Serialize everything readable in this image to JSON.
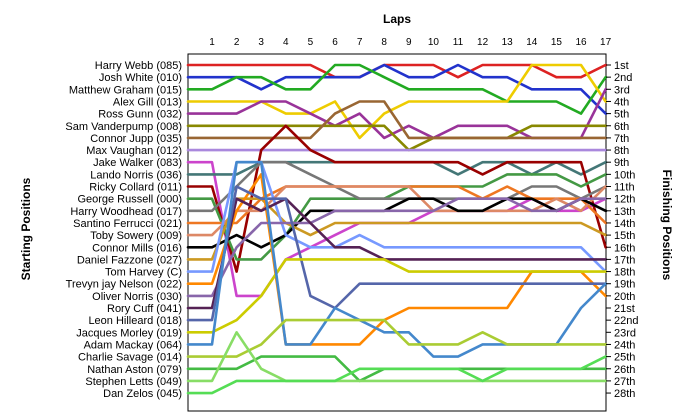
{
  "chart_data": {
    "type": "line",
    "title": "",
    "xlabel": "Laps",
    "ylabel_left": "Starting Positions",
    "ylabel_right": "Finishing Positions",
    "laps": [
      1,
      2,
      3,
      4,
      5,
      6,
      7,
      8,
      9,
      10,
      11,
      12,
      13,
      14,
      15,
      16,
      17
    ],
    "position_scale": [
      1,
      28
    ],
    "finish_labels": [
      "1st",
      "2nd",
      "3rd",
      "4th",
      "5th",
      "6th",
      "7th",
      "8th",
      "9th",
      "10th",
      "11th",
      "12th",
      "13th",
      "14th",
      "15th",
      "16th",
      "17th",
      "18th",
      "19th",
      "20th",
      "21st",
      "22nd",
      "23rd",
      "24th",
      "25th",
      "26th",
      "27th",
      "28th"
    ],
    "grid": false,
    "legend": "none",
    "series": [
      {
        "name": "Harry Webb (085)",
        "color": "#dd2222",
        "values": [
          1,
          1,
          1,
          1,
          1,
          2,
          2,
          1,
          1,
          1,
          2,
          1,
          1,
          1,
          2,
          2,
          1
        ]
      },
      {
        "name": "Josh White (010)",
        "color": "#2233cc",
        "values": [
          2,
          2,
          3,
          2,
          2,
          2,
          2,
          1,
          2,
          2,
          1,
          2,
          2,
          3,
          3,
          3,
          5
        ]
      },
      {
        "name": "Matthew Graham (015)",
        "color": "#22aa22",
        "values": [
          3,
          2,
          2,
          3,
          3,
          1,
          1,
          2,
          3,
          3,
          3,
          3,
          4,
          4,
          4,
          5,
          2
        ]
      },
      {
        "name": "Alex Gill (013)",
        "color": "#eecc00",
        "values": [
          4,
          4,
          4,
          5,
          5,
          4,
          7,
          5,
          4,
          4,
          4,
          4,
          4,
          1,
          1,
          1,
          4
        ]
      },
      {
        "name": "Ross Gunn (032)",
        "color": "#993399",
        "values": [
          5,
          5,
          4,
          4,
          5,
          6,
          5,
          7,
          6,
          7,
          6,
          6,
          6,
          7,
          7,
          7,
          3
        ]
      },
      {
        "name": "Sam Vanderpump (008)",
        "color": "#888800",
        "values": [
          6,
          6,
          6,
          6,
          6,
          6,
          6,
          6,
          8,
          7,
          7,
          7,
          7,
          6,
          6,
          6,
          6
        ]
      },
      {
        "name": "Connor Jupp (035)",
        "color": "#996633",
        "values": [
          7,
          7,
          7,
          7,
          7,
          5,
          4,
          4,
          7,
          7,
          7,
          7,
          7,
          7,
          7,
          7,
          7
        ]
      },
      {
        "name": "Max Vaughan (012)",
        "color": "#aa88dd",
        "values": [
          8,
          8,
          8,
          8,
          8,
          8,
          8,
          8,
          8,
          8,
          8,
          8,
          8,
          8,
          8,
          8,
          8
        ]
      },
      {
        "name": "Jake Walker (083)",
        "color": "#cc44cc",
        "values": [
          9,
          20,
          20,
          17,
          16,
          15,
          14,
          14,
          14,
          13,
          13,
          13,
          13,
          12,
          13,
          13,
          12
        ]
      },
      {
        "name": "Lando Norris (036)",
        "color": "#447777",
        "values": [
          10,
          10,
          9,
          9,
          9,
          9,
          9,
          9,
          9,
          9,
          10,
          9,
          9,
          10,
          9,
          10,
          9
        ]
      },
      {
        "name": "Ricky Collard (011)",
        "color": "#990000",
        "values": [
          11,
          18,
          8,
          6,
          8,
          9,
          9,
          9,
          9,
          9,
          9,
          10,
          9,
          9,
          9,
          9,
          16
        ]
      },
      {
        "name": "George Russell (000)",
        "color": "#449944",
        "values": [
          12,
          17,
          17,
          15,
          12,
          12,
          12,
          12,
          11,
          11,
          11,
          11,
          10,
          10,
          10,
          11,
          10
        ]
      },
      {
        "name": "Harry Woodhead (017)",
        "color": "#777777",
        "values": [
          13,
          11,
          9,
          9,
          10,
          11,
          12,
          12,
          12,
          12,
          12,
          12,
          12,
          11,
          11,
          12,
          11
        ]
      },
      {
        "name": "Santino Ferrucci (021)",
        "color": "#ee7722",
        "values": [
          14,
          14,
          12,
          11,
          11,
          11,
          11,
          11,
          11,
          11,
          11,
          12,
          11,
          12,
          12,
          12,
          14
        ]
      },
      {
        "name": "Toby Sowery (009)",
        "color": "#dd8866",
        "values": [
          15,
          13,
          13,
          11,
          11,
          11,
          11,
          11,
          11,
          13,
          13,
          13,
          13,
          13,
          12,
          13,
          11
        ]
      },
      {
        "name": "Connor Mills (016)",
        "color": "#000000",
        "values": [
          16,
          15,
          16,
          15,
          13,
          13,
          13,
          13,
          12,
          12,
          13,
          13,
          12,
          12,
          13,
          12,
          13
        ]
      },
      {
        "name": "Daniel Fazzone (027)",
        "color": "#cc9922",
        "values": [
          17,
          12,
          12,
          14,
          15,
          14,
          14,
          14,
          14,
          14,
          14,
          14,
          14,
          14,
          14,
          14,
          15
        ]
      },
      {
        "name": "Tom Harvey (C)",
        "color": "#7799ff",
        "values": [
          18,
          9,
          9,
          15,
          16,
          16,
          15,
          16,
          16,
          16,
          16,
          16,
          16,
          16,
          16,
          16,
          18
        ]
      },
      {
        "name": "Trevyn jay Nelson (022)",
        "color": "#ff8800",
        "values": [
          19,
          13,
          10,
          24,
          24,
          24,
          24,
          22,
          21,
          21,
          21,
          21,
          21,
          18,
          18,
          18,
          20
        ]
      },
      {
        "name": "Oliver Norris (030)",
        "color": "#8866aa",
        "values": [
          20,
          16,
          14,
          14,
          14,
          13,
          13,
          13,
          13,
          13,
          12,
          12,
          12,
          13,
          13,
          12,
          12
        ]
      },
      {
        "name": "Rory Cuff (041)",
        "color": "#552255",
        "values": [
          21,
          12,
          13,
          12,
          14,
          16,
          16,
          17,
          17,
          17,
          17,
          17,
          17,
          17,
          17,
          17,
          17
        ]
      },
      {
        "name": "Leon Hilleard (018)",
        "color": "#5566aa",
        "values": [
          22,
          11,
          12,
          12,
          20,
          21,
          19,
          19,
          19,
          19,
          19,
          19,
          19,
          19,
          19,
          19,
          19
        ]
      },
      {
        "name": "Jacques Morley (019)",
        "color": "#cccc00",
        "values": [
          23,
          22,
          20,
          17,
          17,
          17,
          17,
          17,
          18,
          18,
          18,
          18,
          18,
          18,
          18,
          18,
          18
        ]
      },
      {
        "name": "Adam Mackay (064)",
        "color": "#4488cc",
        "values": [
          24,
          9,
          9,
          24,
          24,
          21,
          22,
          23,
          23,
          25,
          25,
          24,
          24,
          24,
          24,
          21,
          19
        ]
      },
      {
        "name": "Charlie Savage (014)",
        "color": "#aacc33",
        "values": [
          25,
          25,
          24,
          22,
          22,
          22,
          22,
          22,
          24,
          24,
          24,
          23,
          24,
          24,
          24,
          24,
          24
        ]
      },
      {
        "name": "Nathan Aston (079)",
        "color": "#44bb44",
        "values": [
          26,
          26,
          25,
          25,
          25,
          25,
          27,
          26,
          26,
          26,
          26,
          26,
          26,
          26,
          26,
          26,
          26
        ]
      },
      {
        "name": "Stephen Letts (049)",
        "color": "#88dd66",
        "values": [
          27,
          23,
          26,
          27,
          27,
          27,
          27,
          27,
          27,
          27,
          27,
          27,
          27,
          27,
          27,
          27,
          27
        ]
      },
      {
        "name": "Dan Zelos (045)",
        "color": "#55dd55",
        "values": [
          28,
          27,
          27,
          27,
          27,
          27,
          26,
          26,
          26,
          26,
          26,
          27,
          26,
          26,
          26,
          26,
          25
        ]
      }
    ]
  }
}
